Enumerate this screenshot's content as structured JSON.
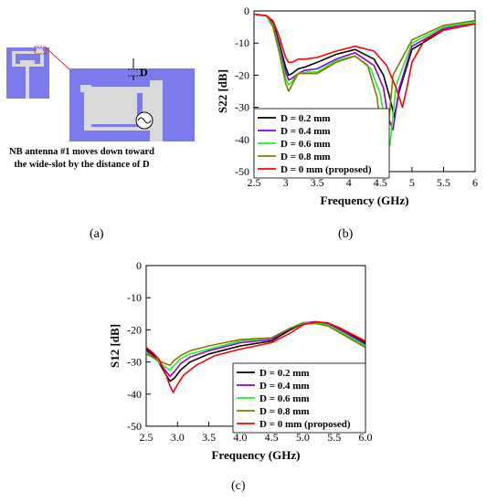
{
  "panel_a": {
    "label": "(a)",
    "marker_label": "D",
    "caption_line1": "NB antenna #1 moves down toward",
    "caption_line2": "the wide-slot by the distance of D"
  },
  "panel_b": {
    "label": "(b)"
  },
  "panel_c": {
    "label": "(c)"
  },
  "colors": {
    "board": "#7b7bee",
    "antenna": "#d9d9d9",
    "highlight": "#e03030"
  },
  "chart_data": [
    {
      "type": "line",
      "xlabel": "Frequency (GHz)",
      "ylabel": "S22 [dB]",
      "xlim": [
        2.5,
        6
      ],
      "ylim": [
        -50,
        0
      ],
      "xticks": [
        "2.5",
        "3",
        "3.5",
        "4",
        "4.5",
        "5",
        "5.5",
        "6"
      ],
      "yticks": [
        "0",
        "-10",
        "-20",
        "-30",
        "-40",
        "-50"
      ],
      "grid": false,
      "legend_position": "bottom-left",
      "series": [
        {
          "name": "D = 0.2 mm",
          "color": "#000000",
          "x": [
            2.5,
            2.7,
            2.8,
            2.9,
            3.0,
            3.05,
            3.1,
            3.2,
            3.3,
            3.5,
            3.8,
            4.1,
            4.4,
            4.55,
            4.65,
            4.72,
            4.8,
            5.0,
            5.5,
            6.0
          ],
          "y": [
            -1,
            -1.5,
            -3.5,
            -10,
            -17.5,
            -20,
            -19.5,
            -18,
            -17.5,
            -16,
            -13.5,
            -12,
            -15,
            -20,
            -27,
            -33,
            -25,
            -12,
            -6,
            -4
          ]
        },
        {
          "name": "D = 0.4 mm",
          "color": "#8b00d9",
          "x": [
            2.5,
            2.7,
            2.8,
            2.9,
            3.0,
            3.05,
            3.1,
            3.2,
            3.3,
            3.5,
            3.8,
            4.1,
            4.4,
            4.55,
            4.62,
            4.7,
            4.8,
            5.0,
            5.5,
            6.0
          ],
          "y": [
            -1,
            -1.5,
            -4,
            -11,
            -19,
            -21.5,
            -21,
            -19.5,
            -18.5,
            -18,
            -15,
            -13,
            -17,
            -24,
            -33,
            -37,
            -24,
            -11,
            -5.5,
            -3.5
          ]
        },
        {
          "name": "D = 0.6 mm",
          "color": "#22ee22",
          "x": [
            2.5,
            2.7,
            2.8,
            2.9,
            3.0,
            3.05,
            3.1,
            3.2,
            3.35,
            3.5,
            3.8,
            4.1,
            4.35,
            4.5,
            4.6,
            4.65,
            4.75,
            5.0,
            5.5,
            6.0
          ],
          "y": [
            -1,
            -1.5,
            -4.5,
            -12,
            -21,
            -23,
            -22,
            -19.5,
            -19,
            -19,
            -15.5,
            -14,
            -18,
            -26,
            -38,
            -42,
            -23,
            -10,
            -5,
            -3.5
          ]
        },
        {
          "name": "D = 0.8 mm",
          "color": "#7c7c00",
          "x": [
            2.5,
            2.7,
            2.8,
            2.9,
            3.0,
            3.05,
            3.1,
            3.2,
            3.35,
            3.5,
            3.8,
            4.1,
            4.3,
            4.45,
            4.55,
            4.6,
            4.7,
            5.0,
            5.5,
            6.0
          ],
          "y": [
            -1,
            -1.5,
            -5,
            -13,
            -22.5,
            -25,
            -23,
            -19.5,
            -19.5,
            -19.5,
            -16,
            -14,
            -17,
            -27,
            -47,
            -42,
            -20,
            -9,
            -4.5,
            -3
          ]
        },
        {
          "name": "D = 0 mm (proposed)",
          "color": "#ff0000",
          "x": [
            2.5,
            2.7,
            2.8,
            2.9,
            3.0,
            3.05,
            3.1,
            3.2,
            3.3,
            3.5,
            3.8,
            4.1,
            4.4,
            4.6,
            4.75,
            4.85,
            4.92,
            5.0,
            5.2,
            5.5,
            6.0
          ],
          "y": [
            -1,
            -1.5,
            -3,
            -8,
            -14.5,
            -16,
            -16,
            -15,
            -15,
            -14.5,
            -12.5,
            -11,
            -12.5,
            -17,
            -24,
            -30,
            -24,
            -16,
            -9,
            -6,
            -4
          ]
        }
      ]
    },
    {
      "type": "line",
      "xlabel": "Frequency (GHz)",
      "ylabel": "S12 [dB]",
      "xlim": [
        2.5,
        6.0
      ],
      "ylim": [
        -50,
        0
      ],
      "xticks": [
        "2.5",
        "3.0",
        "3.5",
        "4.0",
        "4.5",
        "5.0",
        "5.5",
        "6.0"
      ],
      "yticks": [
        "0",
        "-10",
        "-20",
        "-30",
        "-40",
        "-50"
      ],
      "grid": false,
      "legend_position": "bottom-right",
      "series": [
        {
          "name": "D = 0.2 mm",
          "color": "#000000",
          "x": [
            2.5,
            2.6,
            2.7,
            2.8,
            2.88,
            2.95,
            3.05,
            3.2,
            3.5,
            4.0,
            4.5,
            4.8,
            5.0,
            5.2,
            5.4,
            5.6,
            6.0
          ],
          "y": [
            -26,
            -27.5,
            -30,
            -33.5,
            -36,
            -35,
            -32.5,
            -30,
            -27.5,
            -25,
            -23.5,
            -20,
            -18,
            -17.5,
            -18,
            -19.5,
            -24
          ]
        },
        {
          "name": "D = 0.4 mm",
          "color": "#8b00d9",
          "x": [
            2.5,
            2.6,
            2.7,
            2.8,
            2.88,
            2.95,
            3.05,
            3.2,
            3.5,
            4.0,
            4.5,
            4.8,
            5.0,
            5.2,
            5.4,
            5.6,
            6.0
          ],
          "y": [
            -26.5,
            -28,
            -30,
            -32.5,
            -34.5,
            -33,
            -30.5,
            -28.5,
            -26.5,
            -24,
            -23,
            -19.5,
            -17.8,
            -17.5,
            -18.2,
            -20,
            -24.5
          ]
        },
        {
          "name": "D = 0.6 mm",
          "color": "#22ee22",
          "x": [
            2.5,
            2.6,
            2.7,
            2.8,
            2.88,
            2.95,
            3.05,
            3.2,
            3.5,
            4.0,
            4.5,
            4.8,
            5.0,
            5.2,
            5.4,
            5.6,
            6.0
          ],
          "y": [
            -27,
            -28.5,
            -30,
            -31.5,
            -32.5,
            -31,
            -29,
            -27.5,
            -26,
            -23.5,
            -22.5,
            -19.5,
            -17.8,
            -17.8,
            -18.5,
            -20.5,
            -25
          ]
        },
        {
          "name": "D = 0.8 mm",
          "color": "#7c7c00",
          "x": [
            2.5,
            2.6,
            2.7,
            2.8,
            2.88,
            2.95,
            3.05,
            3.2,
            3.5,
            4.0,
            4.5,
            4.8,
            5.0,
            5.2,
            5.4,
            5.6,
            6.0
          ],
          "y": [
            -27.5,
            -28.5,
            -29.5,
            -30.5,
            -31,
            -29.5,
            -28,
            -26.5,
            -25,
            -23,
            -22.5,
            -19.5,
            -18,
            -18,
            -18.8,
            -21,
            -25.5
          ]
        },
        {
          "name": "D = 0 mm (proposed)",
          "color": "#ff0000",
          "x": [
            2.5,
            2.6,
            2.7,
            2.8,
            2.87,
            2.93,
            3.0,
            3.1,
            3.3,
            3.6,
            4.0,
            4.5,
            4.8,
            5.0,
            5.2,
            5.4,
            5.6,
            6.0
          ],
          "y": [
            -25.5,
            -27,
            -29,
            -33,
            -37,
            -39.5,
            -37,
            -34,
            -31,
            -28,
            -26,
            -24,
            -21,
            -18.5,
            -17.5,
            -17.8,
            -19.5,
            -23.5
          ]
        }
      ]
    }
  ]
}
